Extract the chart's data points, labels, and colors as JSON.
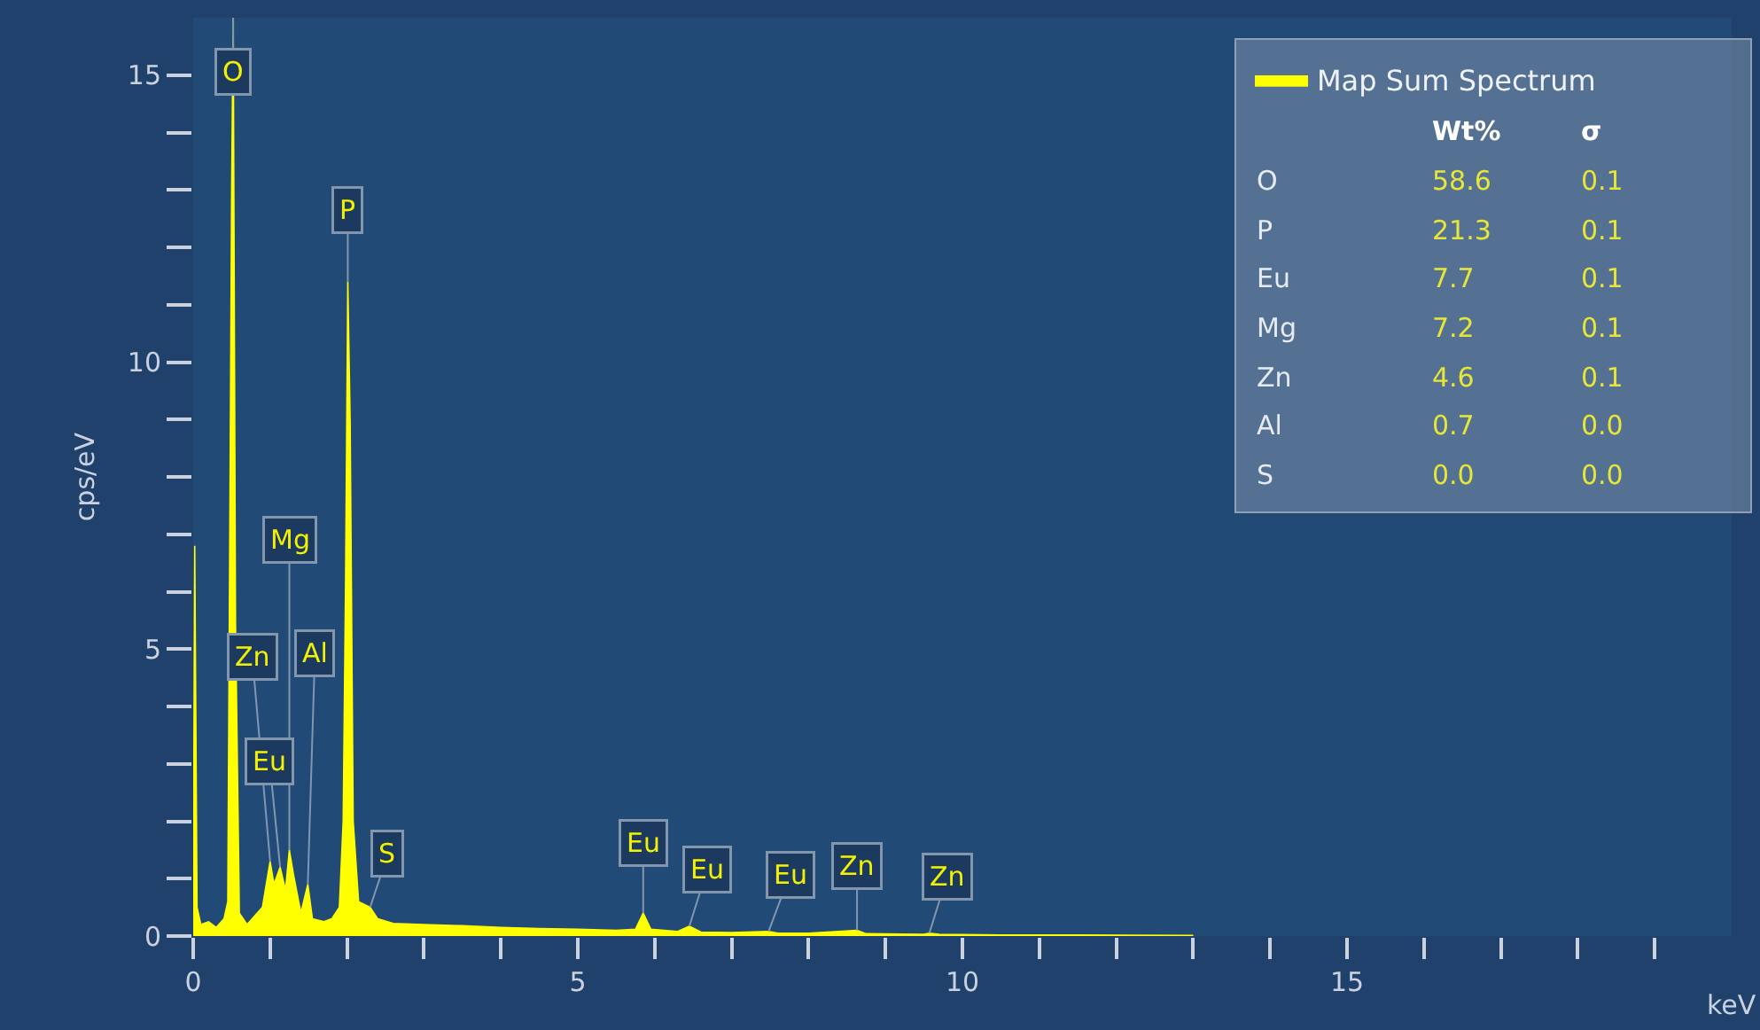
{
  "chart_data": {
    "type": "area",
    "xlabel": "keV",
    "ylabel": "cps/eV",
    "x": [
      0,
      0.02,
      0.05,
      0.1,
      0.2,
      0.3,
      0.4,
      0.45,
      0.5,
      0.52,
      0.55,
      0.6,
      0.7,
      0.8,
      0.9,
      0.95,
      1.0,
      1.05,
      1.13,
      1.2,
      1.25,
      1.3,
      1.4,
      1.49,
      1.55,
      1.7,
      1.8,
      1.9,
      1.95,
      1.98,
      2.01,
      2.04,
      2.08,
      2.15,
      2.3,
      2.4,
      2.6,
      3,
      3.5,
      4,
      4.5,
      5,
      5.5,
      5.75,
      5.85,
      5.95,
      6.3,
      6.45,
      6.6,
      7,
      7.48,
      7.6,
      8,
      8.63,
      8.75,
      9.5,
      9.57,
      9.7,
      10.5,
      11.5,
      13
    ],
    "series": [
      {
        "name": "Map Sum Spectrum",
        "color": "#ffff00",
        "values": [
          0,
          6.8,
          0.5,
          0.2,
          0.25,
          0.15,
          0.3,
          0.6,
          13,
          16,
          5.5,
          0.4,
          0.2,
          0.35,
          0.5,
          0.9,
          1.3,
          0.9,
          1.2,
          0.8,
          1.5,
          1.1,
          0.4,
          0.9,
          0.3,
          0.25,
          0.3,
          0.5,
          2,
          6,
          11.4,
          9,
          2,
          0.6,
          0.5,
          0.3,
          0.22,
          0.2,
          0.18,
          0.15,
          0.13,
          0.12,
          0.1,
          0.12,
          0.4,
          0.12,
          0.08,
          0.17,
          0.07,
          0.06,
          0.08,
          0.05,
          0.05,
          0.1,
          0.04,
          0.03,
          0.05,
          0.03,
          0.02,
          0.02,
          0.01
        ]
      }
    ],
    "xlim": [
      0,
      20
    ],
    "ylim": [
      0,
      16
    ],
    "xticks": [
      0,
      {
        "value": 1,
        "label": null
      },
      {
        "value": 2,
        "label": null
      },
      {
        "value": 3,
        "label": null
      },
      {
        "value": 4,
        "label": null
      },
      5,
      {
        "value": 6,
        "label": null
      },
      {
        "value": 7,
        "label": null
      },
      {
        "value": 8,
        "label": null
      },
      {
        "value": 9,
        "label": null
      },
      10,
      {
        "value": 11,
        "label": null
      },
      {
        "value": 12,
        "label": null
      },
      {
        "value": 13,
        "label": null
      },
      {
        "value": 14,
        "label": null
      },
      15,
      {
        "value": 16,
        "label": null
      },
      {
        "value": 17,
        "label": null
      },
      {
        "value": 18,
        "label": null
      },
      {
        "value": 19,
        "label": null
      }
    ],
    "yticks": [
      0,
      {
        "value": 1,
        "label": null
      },
      {
        "value": 2,
        "label": null
      },
      {
        "value": 3,
        "label": null
      },
      {
        "value": 4,
        "label": null
      },
      5,
      {
        "value": 6,
        "label": null
      },
      {
        "value": 7,
        "label": null
      },
      {
        "value": 8,
        "label": null
      },
      {
        "value": 9,
        "label": null
      },
      10,
      {
        "value": 11,
        "label": null
      },
      {
        "value": 12,
        "label": null
      },
      {
        "value": 13,
        "label": null
      },
      {
        "value": 14,
        "label": null
      },
      15
    ],
    "grid": false,
    "legend": "top right",
    "marker": "none",
    "annotations": [
      {
        "text": "O",
        "x": 0.52,
        "y": 16
      },
      {
        "text": "P",
        "x": 2.01,
        "y": 11.4
      },
      {
        "text": "Mg",
        "x": 1.25,
        "y": 1.5
      },
      {
        "text": "Al",
        "x": 1.49,
        "y": 0.9
      },
      {
        "text": "Zn",
        "x": 1.0,
        "y": 1.3
      },
      {
        "text": "Eu",
        "x": 1.13,
        "y": 1.2
      },
      {
        "text": "S",
        "x": 2.3,
        "y": 0.5
      },
      {
        "text": "Eu",
        "x": 5.85,
        "y": 0.4
      },
      {
        "text": "Eu",
        "x": 6.45,
        "y": 0.17
      },
      {
        "text": "Eu",
        "x": 7.48,
        "y": 0.08
      },
      {
        "text": "Zn",
        "x": 8.63,
        "y": 0.1
      },
      {
        "text": "Zn",
        "x": 9.57,
        "y": 0.05
      },
      "Wt%",
      "σ",
      "O",
      "58.6",
      "0.1",
      "P",
      "21.3",
      "0.1",
      "Eu",
      "7.7",
      "0.1",
      "Mg",
      "7.2",
      "0.1",
      "Zn",
      "4.6",
      "0.1",
      "Al",
      "0.7",
      "0.0",
      "S",
      "0.0",
      "0.0"
    ]
  }
}
